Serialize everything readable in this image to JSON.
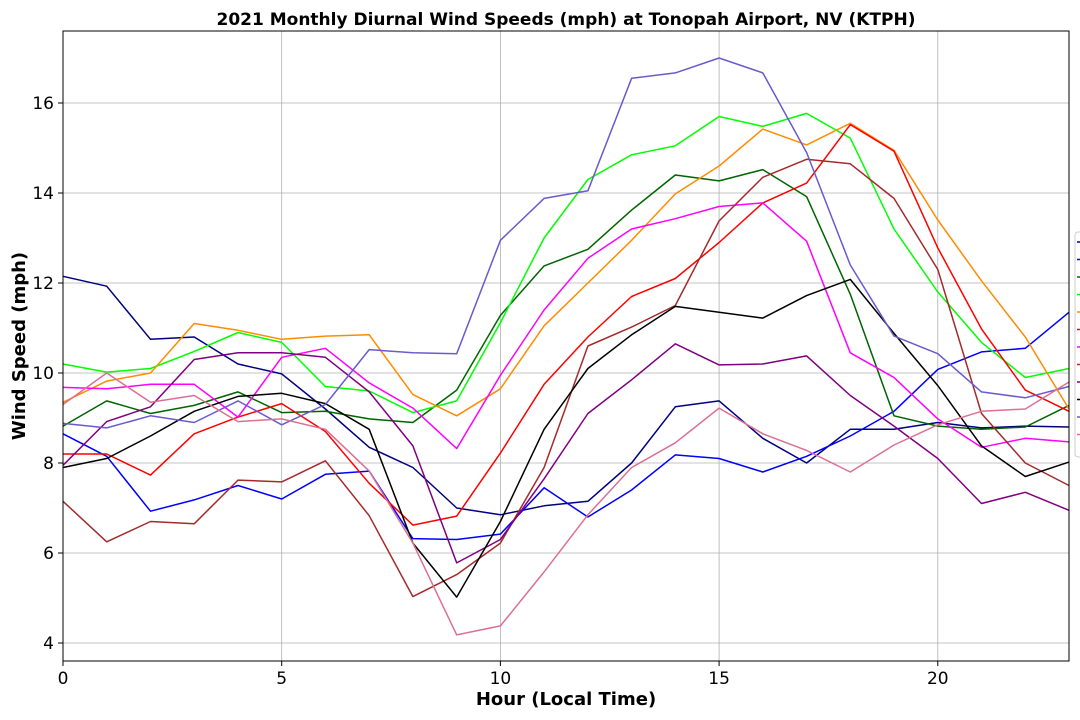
{
  "chart_data": {
    "type": "line",
    "title": "2021 Monthly Diurnal Wind Speeds (mph) at Tonopah Airport, NV (KTPH)",
    "xlabel": "Hour (Local Time)",
    "ylabel": "Wind Speed (mph)",
    "xlim": [
      0,
      23
    ],
    "ylim": [
      3.6,
      17.6
    ],
    "xticks": [
      0,
      5,
      10,
      15,
      20
    ],
    "yticks": [
      4,
      6,
      8,
      10,
      12,
      14,
      16
    ],
    "grid": true,
    "legend": "right (clipped)",
    "x": [
      0,
      1,
      2,
      3,
      4,
      5,
      6,
      7,
      8,
      9,
      10,
      11,
      12,
      13,
      14,
      15,
      16,
      17,
      18,
      19,
      20,
      21,
      22,
      23
    ],
    "series": [
      {
        "color": "#000080",
        "values": [
          12.15,
          11.93,
          10.75,
          10.8,
          10.2,
          9.98,
          9.2,
          8.35,
          7.9,
          7.0,
          6.85,
          7.05,
          7.15,
          8.0,
          9.25,
          9.38,
          8.55,
          8.0,
          8.75,
          8.75,
          8.9,
          8.78,
          8.82,
          8.8
        ]
      },
      {
        "color": "#0000ff",
        "values": [
          8.65,
          8.15,
          6.93,
          7.18,
          7.5,
          7.2,
          7.75,
          7.82,
          6.32,
          6.3,
          6.42,
          7.45,
          6.8,
          7.4,
          8.18,
          8.1,
          7.8,
          8.15,
          8.6,
          9.15,
          10.08,
          10.47,
          10.55,
          11.35
        ]
      },
      {
        "color": "#006400",
        "values": [
          8.82,
          9.38,
          9.1,
          9.28,
          9.58,
          9.12,
          9.15,
          8.98,
          8.9,
          9.62,
          11.28,
          12.38,
          12.75,
          13.62,
          14.4,
          14.27,
          14.52,
          13.92,
          11.75,
          9.05,
          8.82,
          8.75,
          8.8,
          9.28
        ]
      },
      {
        "color": "#00ff00",
        "values": [
          10.2,
          10.02,
          10.1,
          10.48,
          10.9,
          10.68,
          9.7,
          9.6,
          9.12,
          9.38,
          11.12,
          13.0,
          14.3,
          14.85,
          15.05,
          15.7,
          15.48,
          15.77,
          15.22,
          13.2,
          11.8,
          10.68,
          9.9,
          10.1
        ]
      },
      {
        "color": "#ff8c00",
        "values": [
          9.35,
          9.82,
          10.0,
          11.1,
          10.95,
          10.75,
          10.82,
          10.85,
          9.52,
          9.05,
          9.65,
          11.05,
          12.0,
          12.95,
          13.98,
          14.6,
          15.42,
          15.07,
          15.55,
          14.95,
          13.4,
          12.05,
          10.8,
          9.2
        ]
      },
      {
        "color": "#ff0000",
        "values": [
          8.2,
          8.2,
          7.73,
          8.65,
          9.02,
          9.32,
          8.7,
          7.55,
          6.62,
          6.82,
          8.22,
          9.75,
          10.8,
          11.7,
          12.1,
          12.9,
          13.78,
          14.22,
          15.52,
          14.93,
          12.78,
          10.98,
          9.62,
          9.15
        ]
      },
      {
        "color": "#ff00ff",
        "values": [
          9.68,
          9.65,
          9.75,
          9.75,
          9.02,
          10.35,
          10.55,
          9.78,
          9.22,
          8.32,
          9.95,
          11.4,
          12.55,
          13.2,
          13.43,
          13.7,
          13.78,
          12.93,
          10.45,
          9.9,
          8.98,
          8.35,
          8.55,
          8.47
        ]
      },
      {
        "color": "#a52a2a",
        "values": [
          7.15,
          6.25,
          6.7,
          6.65,
          7.62,
          7.58,
          8.05,
          6.83,
          5.03,
          5.52,
          6.22,
          7.9,
          10.6,
          11.02,
          11.5,
          13.38,
          14.35,
          14.75,
          14.65,
          13.88,
          12.3,
          9.1,
          8.0,
          7.5
        ]
      },
      {
        "color": "#800080",
        "values": [
          7.95,
          8.92,
          9.25,
          10.3,
          10.45,
          10.45,
          10.35,
          9.58,
          8.38,
          5.78,
          6.3,
          7.65,
          9.1,
          9.85,
          10.65,
          10.18,
          10.2,
          10.38,
          9.5,
          8.82,
          8.1,
          7.1,
          7.35,
          6.95
        ]
      },
      {
        "color": "#000000",
        "values": [
          7.9,
          8.1,
          8.6,
          9.15,
          9.48,
          9.55,
          9.32,
          8.75,
          6.22,
          5.02,
          6.7,
          8.75,
          10.1,
          10.85,
          11.48,
          11.35,
          11.22,
          11.72,
          12.08,
          10.88,
          9.72,
          8.38,
          7.7,
          8.02
        ]
      },
      {
        "color": "#6a5acd",
        "values": [
          8.88,
          8.78,
          9.05,
          8.9,
          9.38,
          8.85,
          9.3,
          10.52,
          10.45,
          10.43,
          12.95,
          13.88,
          14.05,
          16.55,
          16.67,
          17.0,
          16.67,
          14.9,
          12.4,
          10.82,
          10.43,
          9.58,
          9.45,
          9.7
        ]
      },
      {
        "color": "#db7093",
        "values": [
          9.3,
          10.0,
          9.35,
          9.5,
          8.92,
          8.98,
          8.75,
          7.82,
          6.22,
          4.18,
          4.38,
          5.58,
          6.85,
          7.9,
          8.45,
          9.22,
          8.65,
          8.28,
          7.8,
          8.4,
          8.85,
          9.15,
          9.2,
          9.8
        ]
      }
    ]
  }
}
